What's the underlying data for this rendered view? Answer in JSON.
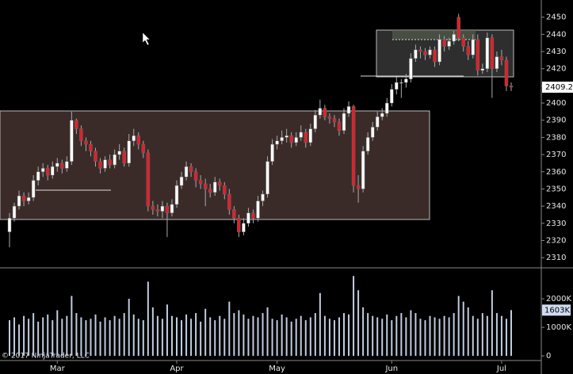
{
  "chart_data": [
    {
      "type": "candlestick",
      "categories": [
        null,
        null,
        null,
        null,
        null,
        null,
        null,
        null,
        null,
        null,
        "Mar",
        null,
        null,
        null,
        null,
        null,
        null,
        null,
        null,
        null,
        null,
        null,
        null,
        null,
        null,
        null,
        null,
        null,
        null,
        null,
        null,
        null,
        null,
        null,
        null,
        "Apr",
        null,
        null,
        null,
        null,
        null,
        null,
        null,
        null,
        null,
        null,
        null,
        null,
        null,
        null,
        null,
        null,
        null,
        null,
        null,
        null,
        "May",
        null,
        null,
        null,
        null,
        null,
        null,
        null,
        null,
        null,
        null,
        null,
        null,
        null,
        null,
        null,
        null,
        null,
        null,
        null,
        null,
        null,
        null,
        null,
        "Jun",
        null,
        null,
        null,
        null,
        null,
        null,
        null,
        null,
        null,
        null,
        null,
        null,
        null,
        null,
        null,
        null,
        null,
        null,
        null,
        null,
        null,
        null,
        "Jul",
        null,
        null
      ],
      "open": [
        2325,
        2333,
        2340,
        2346,
        2343,
        2345,
        2355,
        2360,
        2362,
        2358,
        2363,
        2365,
        2362,
        2366,
        2390,
        2385,
        2378,
        2376,
        2372,
        2366,
        2362,
        2367,
        2364,
        2370,
        2372,
        2365,
        2378,
        2381,
        2376,
        2371,
        2340,
        2338,
        2337,
        2340,
        2336,
        2341,
        2352,
        2357,
        2363,
        2360,
        2355,
        2353,
        2350,
        2348,
        2354,
        2352,
        2347,
        2338,
        2333,
        2325,
        2330,
        2336,
        2333,
        2343,
        2347,
        2366,
        2376,
        2378,
        2380,
        2381,
        2377,
        2380,
        2383,
        2377,
        2385,
        2393,
        2397,
        2392,
        2391,
        2389,
        2384,
        2394,
        2398,
        2352,
        2350,
        2372,
        2380,
        2386,
        2392,
        2394,
        2400,
        2408,
        2412,
        2412,
        2414,
        2426,
        2431,
        2430,
        2428,
        2431,
        2424,
        2437,
        2433,
        2436,
        2450,
        2438,
        2433,
        2428,
        2437,
        2419,
        2420,
        2438,
        2420,
        2427,
        2425,
        2410
      ],
      "high": [
        2336,
        2342,
        2349,
        2348,
        2348,
        2358,
        2363,
        2365,
        2364,
        2366,
        2368,
        2367,
        2369,
        2395,
        2391,
        2387,
        2380,
        2378,
        2374,
        2368,
        2369,
        2370,
        2373,
        2376,
        2374,
        2382,
        2385,
        2383,
        2378,
        2373,
        2343,
        2341,
        2343,
        2342,
        2344,
        2355,
        2360,
        2366,
        2365,
        2362,
        2358,
        2356,
        2353,
        2357,
        2356,
        2354,
        2350,
        2340,
        2335,
        2333,
        2339,
        2338,
        2346,
        2349,
        2369,
        2379,
        2381,
        2384,
        2385,
        2383,
        2383,
        2387,
        2385,
        2388,
        2396,
        2402,
        2399,
        2394,
        2393,
        2391,
        2397,
        2401,
        2399,
        2358,
        2375,
        2383,
        2389,
        2395,
        2397,
        2403,
        2411,
        2415,
        2414,
        2417,
        2429,
        2434,
        2433,
        2432,
        2433,
        2433,
        2440,
        2439,
        2438,
        2442,
        2452,
        2440,
        2436,
        2440,
        2440,
        2423,
        2441,
        2440,
        2430,
        2431,
        2427,
        2412
      ],
      "low": [
        2316,
        2331,
        2338,
        2340,
        2341,
        2343,
        2352,
        2357,
        2355,
        2356,
        2360,
        2359,
        2360,
        2364,
        2382,
        2375,
        2372,
        2369,
        2363,
        2359,
        2360,
        2362,
        2362,
        2367,
        2363,
        2363,
        2375,
        2373,
        2368,
        2337,
        2335,
        2334,
        2333,
        2322,
        2334,
        2339,
        2350,
        2355,
        2357,
        2351,
        2350,
        2340,
        2345,
        2346,
        2349,
        2344,
        2335,
        2330,
        2322,
        2323,
        2328,
        2330,
        2331,
        2340,
        2345,
        2364,
        2373,
        2376,
        2377,
        2374,
        2375,
        2378,
        2374,
        2375,
        2383,
        2391,
        2390,
        2388,
        2386,
        2381,
        2382,
        2392,
        2348,
        2342,
        2348,
        2370,
        2378,
        2384,
        2390,
        2392,
        2398,
        2405,
        2403,
        2409,
        2412,
        2424,
        2426,
        2425,
        2426,
        2421,
        2422,
        2430,
        2431,
        2434,
        2436,
        2430,
        2425,
        2426,
        2416,
        2417,
        2418,
        2403,
        2418,
        2422,
        2407,
        2407
      ],
      "close": [
        2333,
        2340,
        2346,
        2343,
        2345,
        2355,
        2360,
        2362,
        2358,
        2363,
        2365,
        2362,
        2366,
        2390,
        2385,
        2378,
        2376,
        2372,
        2366,
        2362,
        2367,
        2364,
        2370,
        2372,
        2365,
        2378,
        2381,
        2376,
        2371,
        2340,
        2338,
        2337,
        2340,
        2336,
        2341,
        2352,
        2357,
        2363,
        2360,
        2355,
        2353,
        2350,
        2348,
        2354,
        2352,
        2347,
        2338,
        2333,
        2325,
        2330,
        2336,
        2333,
        2343,
        2347,
        2366,
        2376,
        2378,
        2380,
        2381,
        2377,
        2380,
        2383,
        2377,
        2385,
        2393,
        2397,
        2392,
        2391,
        2389,
        2384,
        2394,
        2398,
        2352,
        2350,
        2372,
        2380,
        2386,
        2392,
        2394,
        2400,
        2408,
        2412,
        2412,
        2414,
        2426,
        2431,
        2430,
        2428,
        2431,
        2424,
        2437,
        2433,
        2436,
        2440,
        2438,
        2433,
        2428,
        2437,
        2419,
        2420,
        2438,
        2420,
        2427,
        2425,
        2410,
        2409.25
      ],
      "up_color": "#ffffff",
      "down_color": "#e0202a",
      "ylim": [
        2305,
        2460
      ],
      "yticks": [
        2310,
        2320,
        2330,
        2340,
        2350,
        2360,
        2370,
        2380,
        2390,
        2400,
        2410,
        2420,
        2430,
        2440,
        2450
      ]
    },
    {
      "type": "bar",
      "values": [
        1250,
        1350,
        1100,
        1400,
        1300,
        1500,
        1200,
        1350,
        1450,
        1250,
        1600,
        1300,
        1400,
        2100,
        1500,
        1350,
        1250,
        1300,
        1450,
        1200,
        1350,
        1250,
        1400,
        1300,
        1500,
        2000,
        1450,
        1300,
        1250,
        2600,
        1700,
        1400,
        1300,
        1800,
        1400,
        1350,
        1250,
        1450,
        1300,
        1500,
        1200,
        1650,
        1350,
        1250,
        1400,
        1300,
        1900,
        1500,
        1600,
        1450,
        1300,
        1400,
        1350,
        1500,
        1700,
        1300,
        1250,
        1450,
        1350,
        1200,
        1300,
        1400,
        1250,
        1350,
        1500,
        2200,
        1400,
        1300,
        1250,
        1350,
        1500,
        1450,
        2800,
        2300,
        1700,
        1500,
        1400,
        1350,
        1300,
        1450,
        1250,
        1400,
        1500,
        1350,
        1600,
        1500,
        1300,
        1250,
        1400,
        1350,
        1300,
        1400,
        1350,
        1500,
        2100,
        1900,
        1700,
        1400,
        1300,
        1500,
        1400,
        2300,
        1500,
        1400,
        1300,
        1603
      ],
      "color": "#c0cde0",
      "last_value_label": "1603K",
      "ylim": [
        -80,
        3030
      ],
      "yticks": [
        0,
        {
          "value": 1000,
          "label": "1000K"
        },
        {
          "value": 2000,
          "label": "2000K"
        }
      ]
    }
  ],
  "copyright": "© 2017 NinjaTrader, LLC"
}
